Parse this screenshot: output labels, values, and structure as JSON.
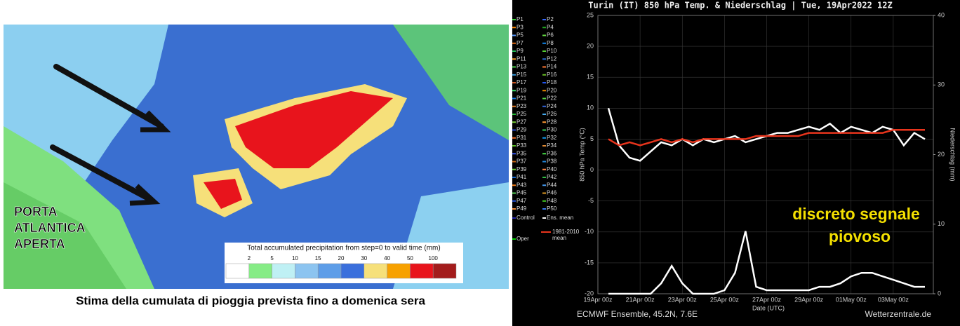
{
  "map": {
    "label_lines": [
      "PORTA",
      "ATLANTICA",
      "APERTA"
    ],
    "colorbar": {
      "title": "Total accumulated precipitation from step=0 to valid time (mm)",
      "labels": [
        2,
        5,
        10,
        15,
        20,
        30,
        40,
        50,
        100
      ],
      "colors": [
        "#ffffff",
        "#86ec86",
        "#bff0f4",
        "#8cc4f0",
        "#5d9de8",
        "#3a6fdc",
        "#f6e07a",
        "#f7a100",
        "#e8141c",
        "#a31c1c"
      ]
    },
    "caption": "Stima della cumulata di pioggia prevista fino a domenica sera"
  },
  "chart_data": {
    "type": "line",
    "title": "Turin  (IT)  850 hPa Temp. & Niederschlag | Tue, 19Apr2022 12Z",
    "y_label": "850 hPa Temp (°C)",
    "y2_label": "Niederschlag (mm)",
    "x_label": "Date (UTC)",
    "footer_left": "ECMWF Ensemble, 45.2N, 7.6E",
    "footer_right": "Wetterzentrale.de",
    "annotation": [
      "discreto segnale",
      "piovoso"
    ],
    "grid": true,
    "xlim": [
      0,
      15.9
    ],
    "xticks": [
      {
        "value": 0,
        "label": "19Apr 00z"
      },
      {
        "value": 2,
        "label": "21Apr 00z"
      },
      {
        "value": 4,
        "label": "23Apr 00z"
      },
      {
        "value": 6,
        "label": "25Apr 00z"
      },
      {
        "value": 8,
        "label": "27Apr 00z"
      },
      {
        "value": 10,
        "label": "29Apr 00z"
      },
      {
        "value": 12,
        "label": "01May 00z"
      },
      {
        "value": 14,
        "label": "03May 00z"
      }
    ],
    "ylim": [
      -20,
      25
    ],
    "yticks": [
      -20,
      -15,
      -10,
      -5,
      0,
      5,
      10,
      15,
      20,
      25
    ],
    "y2lim": [
      0,
      40
    ],
    "y2ticks": [
      0,
      10,
      20,
      30,
      40
    ],
    "x": [
      0.5,
      1,
      1.5,
      2,
      2.5,
      3,
      3.5,
      4,
      4.5,
      5,
      5.5,
      6,
      6.5,
      7,
      7.5,
      8,
      8.5,
      9,
      9.5,
      10,
      10.5,
      11,
      11.5,
      12,
      12.5,
      13,
      13.5,
      14,
      14.5,
      15,
      15.5
    ],
    "series": [
      {
        "name": "Ens. mean",
        "color": "#ffffff",
        "axis": "y",
        "values": [
          10,
          4,
          2,
          1.5,
          3,
          4.5,
          4,
          5,
          4,
          5,
          4.5,
          5,
          5.5,
          4.5,
          5,
          5.5,
          6,
          6,
          6.5,
          7,
          6.5,
          7.5,
          6,
          7,
          6.5,
          6,
          7,
          6.5,
          4,
          6,
          5
        ]
      },
      {
        "name": "1981-2010 mean",
        "color": "#e8341c",
        "axis": "y",
        "values": [
          5,
          4,
          4.5,
          4,
          4.5,
          5,
          4.5,
          5,
          4.5,
          5,
          5,
          5,
          5,
          5,
          5.5,
          5.5,
          5.5,
          5.5,
          5.5,
          6,
          6,
          6,
          6,
          6,
          6,
          6,
          6,
          6.5,
          6.5,
          6.5,
          6.5
        ]
      },
      {
        "name": "Ens. mean",
        "color": "#ffffff",
        "axis": "y2",
        "values": [
          0,
          0,
          0,
          0,
          0,
          1.5,
          4,
          1.5,
          0,
          0,
          0,
          0.5,
          3,
          9,
          1,
          0.5,
          0.5,
          0.5,
          0.5,
          0.5,
          1,
          1,
          1.5,
          2.5,
          3,
          3,
          2.5,
          2,
          1.5,
          1,
          1
        ]
      }
    ],
    "legend": [
      {
        "name": "P1",
        "color": "#33cc33"
      },
      {
        "name": "P2",
        "color": "#3366ff"
      },
      {
        "name": "P3",
        "color": "#ff8800"
      },
      {
        "name": "P4",
        "color": "#22aa22"
      },
      {
        "name": "P5",
        "color": "#5599ff"
      },
      {
        "name": "P6",
        "color": "#66dd44"
      },
      {
        "name": "P7",
        "color": "#dd6611"
      },
      {
        "name": "P8",
        "color": "#1188ee"
      },
      {
        "name": "P9",
        "color": "#22bb55"
      },
      {
        "name": "P10",
        "color": "#55cc33"
      },
      {
        "name": "P11",
        "color": "#ee9922"
      },
      {
        "name": "P12",
        "color": "#2266cc"
      },
      {
        "name": "P13",
        "color": "#44cc44"
      },
      {
        "name": "P14",
        "color": "#ff7733"
      },
      {
        "name": "P15",
        "color": "#3399dd"
      },
      {
        "name": "P16",
        "color": "#66bb22"
      },
      {
        "name": "P17",
        "color": "#cc5522"
      },
      {
        "name": "P18",
        "color": "#2255ee"
      },
      {
        "name": "P19",
        "color": "#33dd66"
      },
      {
        "name": "P20",
        "color": "#ee8800"
      },
      {
        "name": "P21",
        "color": "#1177dd"
      },
      {
        "name": "P22",
        "color": "#55cc44"
      },
      {
        "name": "P23",
        "color": "#dd7722"
      },
      {
        "name": "P24",
        "color": "#3366dd"
      },
      {
        "name": "P25",
        "color": "#22bb33"
      },
      {
        "name": "P26",
        "color": "#44aaee"
      },
      {
        "name": "P27",
        "color": "#77cc33"
      },
      {
        "name": "P28",
        "color": "#ff9933"
      },
      {
        "name": "P29",
        "color": "#2244cc"
      },
      {
        "name": "P30",
        "color": "#33cc55"
      },
      {
        "name": "P31",
        "color": "#ee6622"
      },
      {
        "name": "P32",
        "color": "#1199ee"
      },
      {
        "name": "P33",
        "color": "#55bb22"
      },
      {
        "name": "P34",
        "color": "#dd8833"
      },
      {
        "name": "P35",
        "color": "#3355ee"
      },
      {
        "name": "P36",
        "color": "#44dd44"
      },
      {
        "name": "P37",
        "color": "#cc6611"
      },
      {
        "name": "P38",
        "color": "#2288dd"
      },
      {
        "name": "P39",
        "color": "#66cc33"
      },
      {
        "name": "P40",
        "color": "#ff8844"
      },
      {
        "name": "P41",
        "color": "#1166cc"
      },
      {
        "name": "P42",
        "color": "#33bb44"
      },
      {
        "name": "P43",
        "color": "#ee7711"
      },
      {
        "name": "P44",
        "color": "#4499ee"
      },
      {
        "name": "P45",
        "color": "#55cc55"
      },
      {
        "name": "P46",
        "color": "#dd9922"
      },
      {
        "name": "P47",
        "color": "#2255dd"
      },
      {
        "name": "P48",
        "color": "#44cc22"
      },
      {
        "name": "P49",
        "color": "#ee8833"
      },
      {
        "name": "P50",
        "color": "#3377ee"
      },
      {
        "name": "Control",
        "color": "#2222aa"
      },
      {
        "name": "Ens. mean",
        "color": "#ffffff"
      },
      {
        "name": "1981-2010",
        "color": "#e8341c"
      },
      {
        "name": "mean",
        "color": "#e8341c"
      },
      {
        "name": "Oper",
        "color": "#00cc00"
      }
    ]
  }
}
